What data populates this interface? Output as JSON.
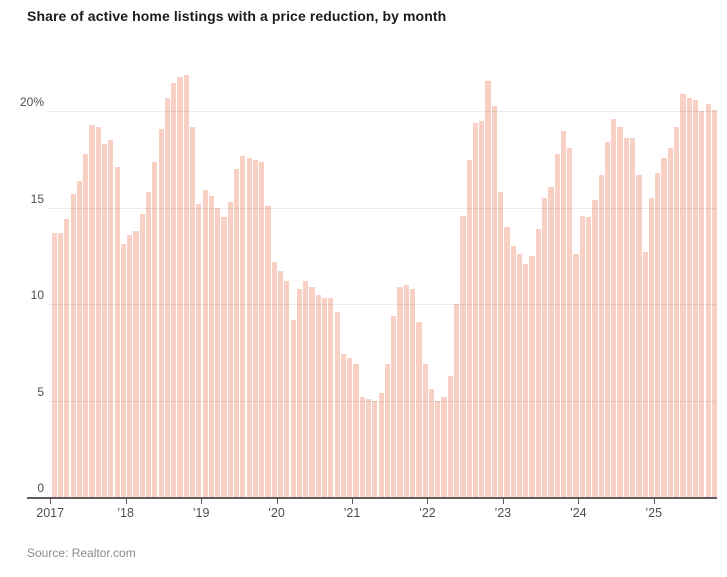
{
  "title": "Share of active home listings with a price reduction, by month",
  "source": "Source: Realtor.com",
  "chart_data": {
    "type": "bar",
    "title": "Share of active home listings with a price reduction, by month",
    "unit": "percent",
    "start": "Jan 2017",
    "end": "Oct 2025",
    "x_tick_labels": [
      "2017",
      "’18",
      "’19",
      "’20",
      "’21",
      "’22",
      "’23",
      "’24",
      "’25"
    ],
    "y_tick_labels": [
      "20%",
      "15",
      "10",
      "5",
      "0"
    ],
    "y_ticks": [
      20,
      15,
      10,
      5,
      0
    ],
    "ylim": [
      0,
      22.2
    ],
    "grid": "horizontal",
    "legend": "none",
    "bar_color": "#f9d1c4",
    "axis_color": "#5b5b5b",
    "label_color": "#4f4f4f",
    "values": [
      13.7,
      13.7,
      14.4,
      15.7,
      16.4,
      17.8,
      19.3,
      19.2,
      18.3,
      18.5,
      17.1,
      13.1,
      13.6,
      13.8,
      14.7,
      15.8,
      17.4,
      19.1,
      20.7,
      21.5,
      21.8,
      21.9,
      19.2,
      15.2,
      15.9,
      15.6,
      15.0,
      14.5,
      15.3,
      17.0,
      17.7,
      17.6,
      17.5,
      17.4,
      15.1,
      12.2,
      11.7,
      11.2,
      9.2,
      10.8,
      11.2,
      10.9,
      10.5,
      10.3,
      10.3,
      9.6,
      7.4,
      7.2,
      6.9,
      5.2,
      5.1,
      5.0,
      5.4,
      6.9,
      9.4,
      10.9,
      11.0,
      10.8,
      9.1,
      6.9,
      5.6,
      5.0,
      5.2,
      6.3,
      10.0,
      14.6,
      17.5,
      19.4,
      19.5,
      21.6,
      20.3,
      15.8,
      14.0,
      13.0,
      12.6,
      12.1,
      12.5,
      13.9,
      15.5,
      16.1,
      17.8,
      19.0,
      18.1,
      12.6,
      14.6,
      14.5,
      15.4,
      16.7,
      18.4,
      19.6,
      19.2,
      18.6,
      18.6,
      16.7,
      12.7,
      15.5,
      16.8,
      17.6,
      18.1,
      19.2,
      20.9,
      20.7,
      20.6,
      20.0,
      20.4,
      20.1
    ]
  }
}
